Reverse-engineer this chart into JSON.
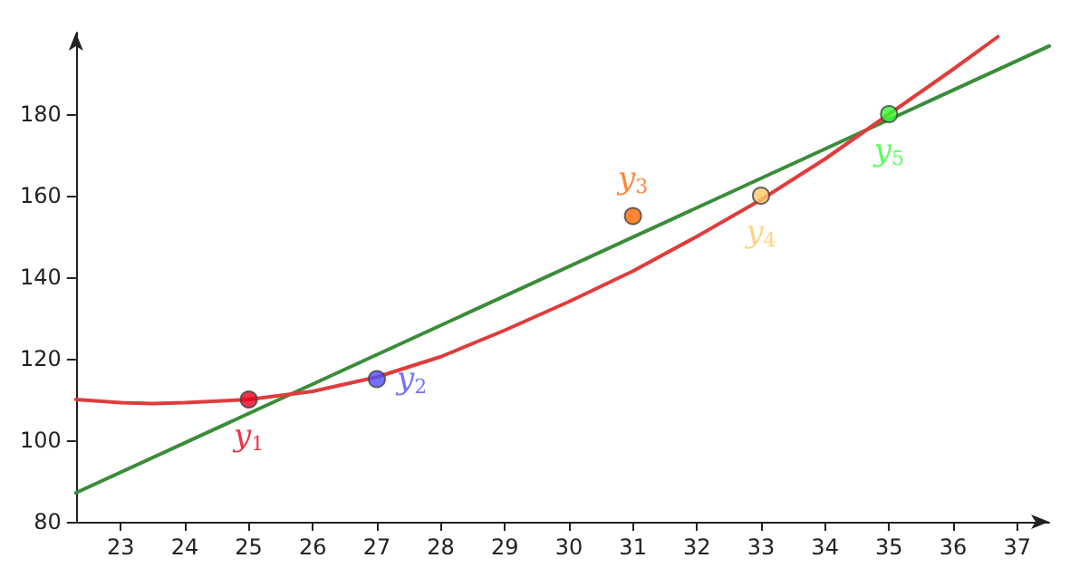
{
  "chart_data": {
    "type": "scatter",
    "xlim": [
      22.3,
      37.5
    ],
    "ylim": [
      80,
      200
    ],
    "xticks": [
      23,
      24,
      25,
      26,
      27,
      28,
      29,
      30,
      31,
      32,
      33,
      34,
      35,
      36,
      37
    ],
    "yticks": [
      80,
      100,
      120,
      140,
      160,
      180
    ],
    "grid": false,
    "series": [
      {
        "type": "line",
        "color": "#3a8c3a",
        "marker": "none",
        "x": [
          22.3,
          37.5
        ],
        "values": [
          87.1,
          196.7
        ]
      },
      {
        "type": "line",
        "color": "#e03c3c",
        "marker": "none",
        "x": [
          22.3,
          23,
          23.5,
          24,
          25,
          26,
          27,
          28,
          29,
          30,
          31,
          32,
          33,
          34,
          35,
          36,
          36.7
        ],
        "values": [
          110,
          109.2,
          109,
          109.2,
          110,
          112,
          115.5,
          120.5,
          127,
          134,
          141.5,
          150,
          159,
          169,
          180,
          191,
          199
        ]
      },
      {
        "marker": "circle",
        "x": [
          25,
          27,
          31,
          33,
          35
        ],
        "values": [
          110,
          115,
          155,
          160,
          180
        ],
        "colors": [
          "#e8001c",
          "#4d4dff",
          "#ff6600",
          "#ffc966",
          "#33ff33"
        ]
      }
    ],
    "annotations": [
      {
        "text": "y$_{1}$",
        "x": 25,
        "y": 110
      },
      {
        "text": "y$_{2}$",
        "x": 27,
        "y": 115
      },
      {
        "text": "y$_{3}$",
        "x": 31,
        "y": 155
      },
      {
        "text": "y$_{4}$",
        "x": 33,
        "y": 160
      },
      {
        "text": "y$_{5}$",
        "x": 35,
        "y": 180
      }
    ]
  }
}
